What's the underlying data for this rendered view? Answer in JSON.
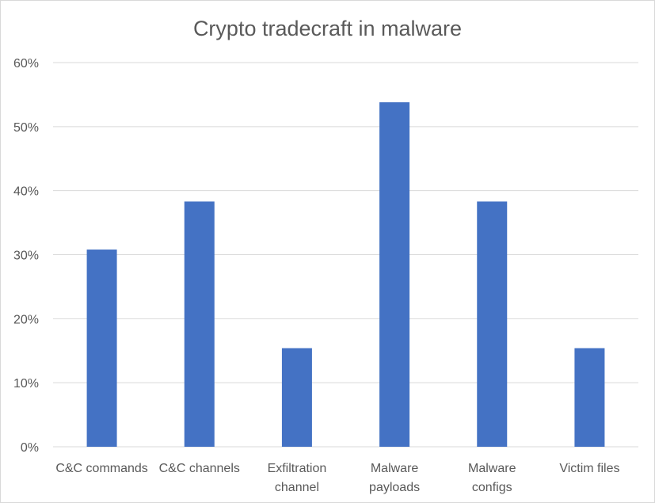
{
  "chart_data": {
    "type": "bar",
    "title": "Crypto tradecraft in malware",
    "categories": [
      [
        "C&C commands"
      ],
      [
        "C&C channels"
      ],
      [
        "Exfiltration",
        "channel"
      ],
      [
        "Malware",
        "payloads"
      ],
      [
        "Malware",
        "configs"
      ],
      [
        "Victim files"
      ]
    ],
    "values": [
      30.8,
      38.3,
      15.4,
      53.8,
      38.3,
      15.4
    ],
    "ylim": [
      0,
      60
    ],
    "yticks": [
      0,
      10,
      20,
      30,
      40,
      50,
      60
    ],
    "ytick_labels": [
      "0%",
      "10%",
      "20%",
      "30%",
      "40%",
      "50%",
      "60%"
    ],
    "xlabel": "",
    "ylabel": "",
    "grid": true,
    "legend": "none",
    "bar_color": "#4472c4",
    "grid_color": "#d9d9d9",
    "text_color": "#595959"
  }
}
